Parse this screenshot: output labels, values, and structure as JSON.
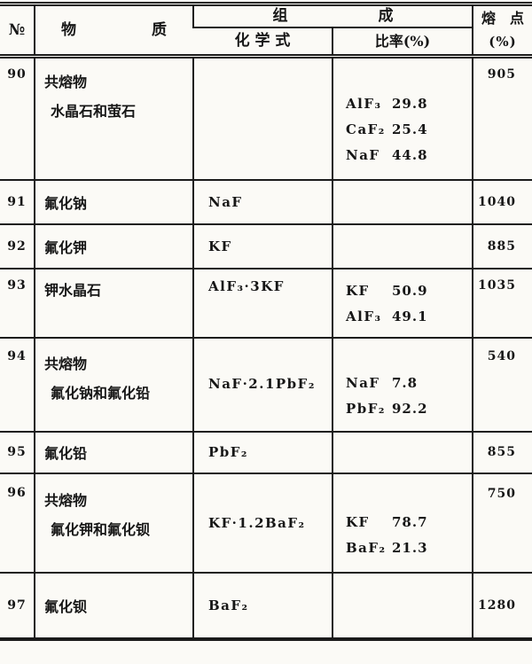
{
  "table": {
    "header": {
      "no": "№",
      "substance": "物　　　　　质",
      "composition": "组　　　　　　成",
      "formula": "化 学 式",
      "ratio": "比率(%)",
      "melting_line1": "熔　点",
      "melting_line2": "(%)"
    },
    "rows": [
      {
        "no": "90",
        "substance1": "共熔物",
        "substance2": "水晶石和萤石",
        "formula": "",
        "ratios": [
          {
            "f": "AlF₃",
            "v": "29.8"
          },
          {
            "f": "CaF₂",
            "v": "25.4"
          },
          {
            "f": "NaF",
            "v": "44.8"
          }
        ],
        "melting_point": "905"
      },
      {
        "no": "91",
        "substance1": "氟化钠",
        "formula": "NaF",
        "melting_point": "1040"
      },
      {
        "no": "92",
        "substance1": "氟化钾",
        "formula": "KF",
        "melting_point": "885"
      },
      {
        "no": "93",
        "substance1": "钾水晶石",
        "formula": "AlF₃·3KF",
        "ratios": [
          {
            "f": "KF",
            "v": "50.9"
          },
          {
            "f": "AlF₃",
            "v": "49.1"
          }
        ],
        "melting_point": "1035"
      },
      {
        "no": "94",
        "substance1": "共熔物",
        "substance2": "氟化钠和氟化铅",
        "formula": "NaF·2.1PbF₂",
        "ratios": [
          {
            "f": "NaF",
            "v": "7.8"
          },
          {
            "f": "PbF₂",
            "v": "92.2"
          }
        ],
        "melting_point": "540"
      },
      {
        "no": "95",
        "substance1": "氟化铅",
        "formula": "PbF₂",
        "melting_point": "855"
      },
      {
        "no": "96",
        "substance1": "共熔物",
        "substance2": "氟化钾和氟化钡",
        "formula": "KF·1.2BaF₂",
        "ratios": [
          {
            "f": "KF",
            "v": "78.7"
          },
          {
            "f": "BaF₂",
            "v": "21.3"
          }
        ],
        "melting_point": "750"
      },
      {
        "no": "97",
        "substance1": "氟化钡",
        "formula": "BaF₂",
        "melting_point": "1280"
      }
    ]
  }
}
